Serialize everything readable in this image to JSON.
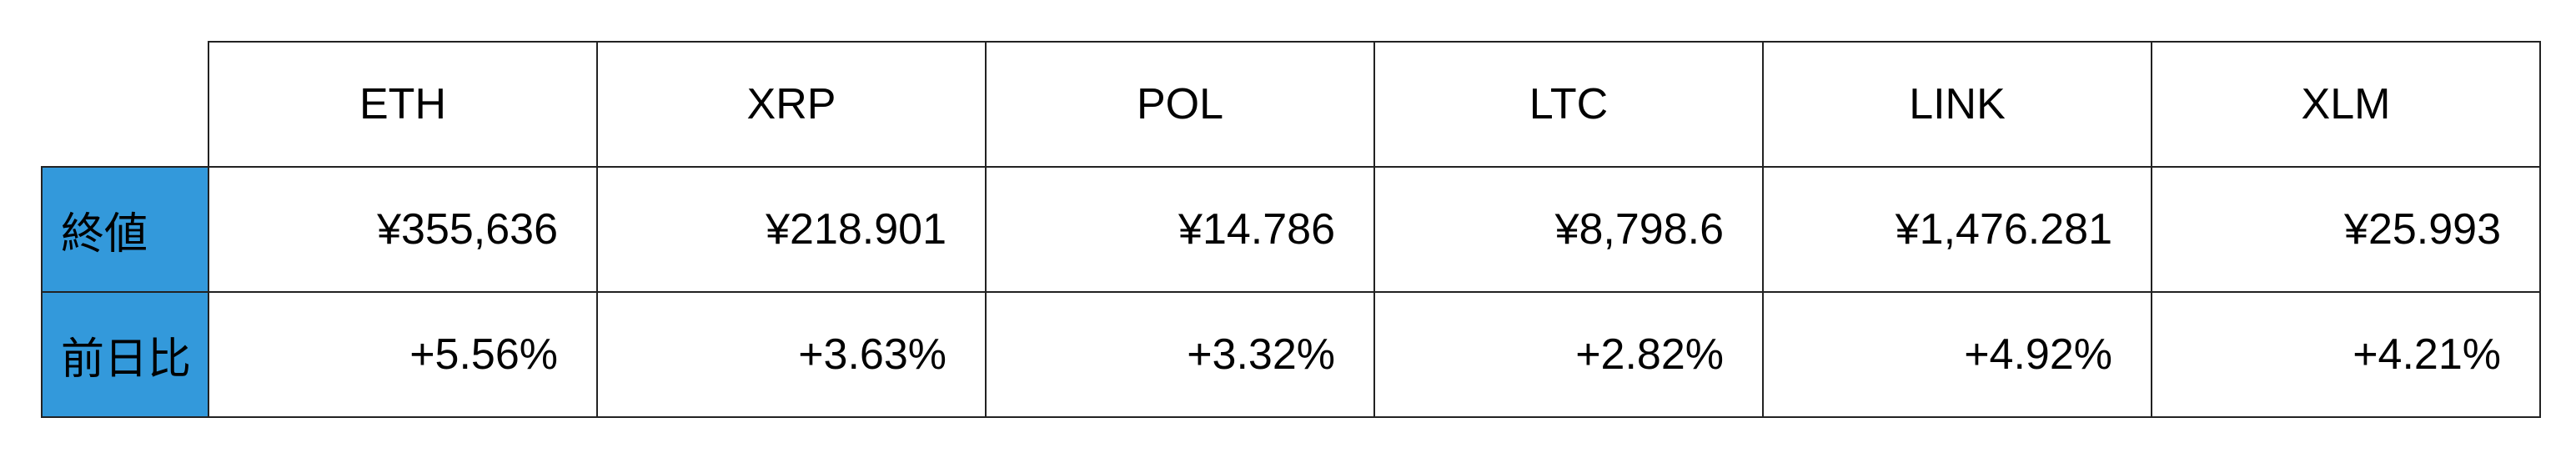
{
  "table": {
    "columns": [
      "ETH",
      "XRP",
      "POL",
      "LTC",
      "LINK",
      "XLM"
    ],
    "rows": [
      {
        "label": "終値",
        "values": [
          "¥355,636",
          "¥218.901",
          "¥14.786",
          "¥8,798.6",
          "¥1,476.281",
          "¥25.993"
        ]
      },
      {
        "label": "前日比",
        "values": [
          "+5.56%",
          "+3.63%",
          "+3.32%",
          "+2.82%",
          "+4.92%",
          "+4.21%"
        ]
      }
    ]
  },
  "colors": {
    "label_background": "#3399db",
    "border": "#222222"
  }
}
